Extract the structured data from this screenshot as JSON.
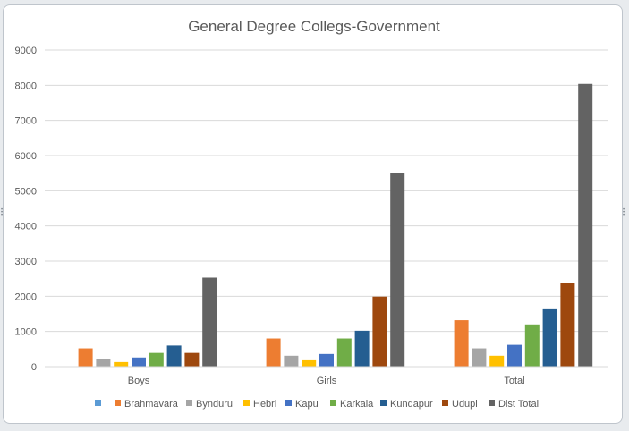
{
  "chart_data": {
    "type": "bar",
    "title": "General Degree Collegs-Government",
    "categories": [
      "Boys",
      "Girls",
      "Total"
    ],
    "yticks": [
      "0",
      "1000",
      "2000",
      "3000",
      "4000",
      "5000",
      "6000",
      "7000",
      "8000",
      "9000"
    ],
    "ylim": [
      0,
      9000
    ],
    "grid": true,
    "legend_position": "bottom",
    "series": [
      {
        "name": "",
        "color": "#5b9bd5",
        "values": [
          0,
          0,
          0
        ]
      },
      {
        "name": "Brahmavara",
        "color": "#ed7d31",
        "values": [
          520,
          800,
          1320
        ]
      },
      {
        "name": "Bynduru",
        "color": "#a5a5a5",
        "values": [
          210,
          310,
          520
        ]
      },
      {
        "name": "Hebri",
        "color": "#ffc000",
        "values": [
          130,
          180,
          310
        ]
      },
      {
        "name": "Kapu",
        "color": "#4472c4",
        "values": [
          260,
          360,
          620
        ]
      },
      {
        "name": "Karkala",
        "color": "#70ad47",
        "values": [
          390,
          800,
          1200
        ]
      },
      {
        "name": "Kundapur",
        "color": "#255e91",
        "values": [
          600,
          1020,
          1630
        ]
      },
      {
        "name": "Udupi",
        "color": "#9e480e",
        "values": [
          390,
          1990,
          2370
        ]
      },
      {
        "name": "Dist Total",
        "color": "#636363",
        "values": [
          2530,
          5500,
          8040
        ]
      }
    ]
  }
}
